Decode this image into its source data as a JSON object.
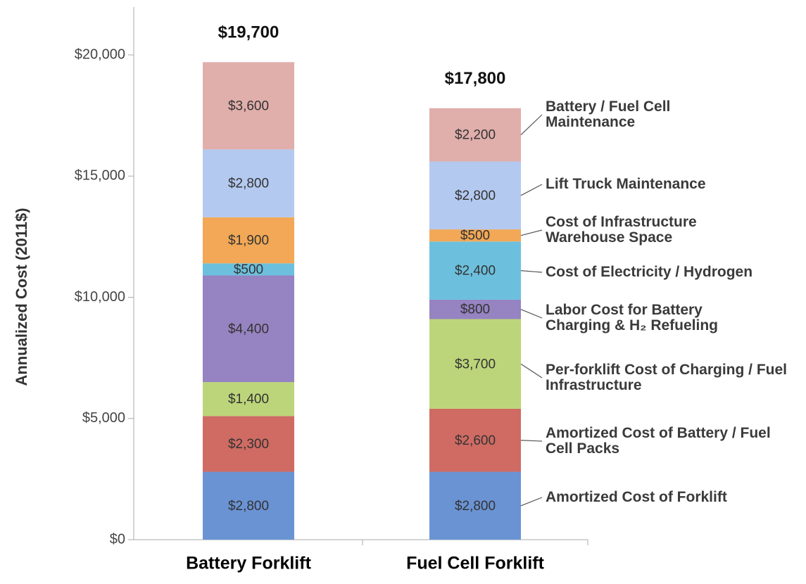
{
  "chart_data": {
    "type": "stacked_bar",
    "y_label": "Annualized Cost (2011$)",
    "categories": [
      "Battery Forklift",
      "Fuel Cell Forklift"
    ],
    "totals": [
      19700,
      17800
    ],
    "total_labels": [
      "$19,700",
      "$17,800"
    ],
    "series": [
      {
        "name": "Amortized Cost of Forklift",
        "color": "#6a93d4",
        "values": [
          2800,
          2800
        ],
        "value_labels": [
          "$2,800",
          "$2,800"
        ]
      },
      {
        "name": "Amortized Cost of Battery / Fuel Cell Packs",
        "color": "#cf6b63",
        "values": [
          2300,
          2600
        ],
        "value_labels": [
          "$2,300",
          "$2,600"
        ]
      },
      {
        "name": "Per-forklift Cost of Charging / Fuel Infrastructure",
        "color": "#bdd57a",
        "values": [
          1400,
          3700
        ],
        "value_labels": [
          "$1,400",
          "$3,700"
        ]
      },
      {
        "name": "Labor Cost for Battery Charging & H₂ Refueling",
        "color": "#9683c1",
        "values": [
          4400,
          800
        ],
        "value_labels": [
          "$4,400",
          "$800"
        ]
      },
      {
        "name": "Cost of Electricity / Hydrogen",
        "color": "#6cc0dd",
        "values": [
          500,
          2400
        ],
        "value_labels": [
          "$500",
          "$2,400"
        ]
      },
      {
        "name": "Cost of Infrastructure Warehouse Space",
        "color": "#f2a856",
        "values": [
          1900,
          500
        ],
        "value_labels": [
          "$1,900",
          "$500"
        ]
      },
      {
        "name": "Lift Truck Maintenance",
        "color": "#b3c9f0",
        "values": [
          2800,
          2800
        ],
        "value_labels": [
          "$2,800",
          "$2,800"
        ]
      },
      {
        "name": "Battery / Fuel Cell Maintenance",
        "color": "#e0aeab",
        "values": [
          3600,
          2200
        ],
        "value_labels": [
          "$3,600",
          "$2,200"
        ]
      }
    ],
    "ylim": [
      0,
      20000
    ],
    "yticks": [
      {
        "value": 0,
        "label": "$0"
      },
      {
        "value": 5000,
        "label": "$5,000"
      },
      {
        "value": 10000,
        "label": "$10,000"
      },
      {
        "value": 15000,
        "label": "$15,000"
      },
      {
        "value": 20000,
        "label": "$20,000"
      }
    ]
  }
}
